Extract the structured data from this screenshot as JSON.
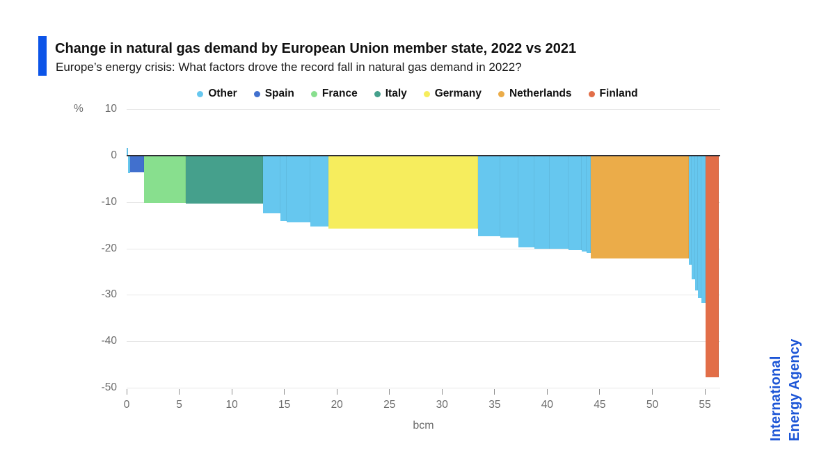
{
  "header": {
    "title": "Change in natural gas demand by European Union member state, 2022 vs 2021",
    "subtitle": "Europe’s energy crisis: What factors drove the record fall in natural gas demand in 2022?",
    "accent_color": "#0C54E8"
  },
  "branding": {
    "line1": "International",
    "line2": "Energy Agency",
    "color": "#1C55D6"
  },
  "axes": {
    "y_unit": "%",
    "x_unit": "bcm"
  },
  "chart_data": {
    "type": "bar",
    "variant": "variable-width-bars (width = volume change in bcm, height = % change)",
    "title": "Change in natural gas demand by European Union member state, 2022 vs 2021",
    "xlabel": "bcm",
    "ylabel": "%",
    "xlim": [
      0,
      56.5
    ],
    "ylim": [
      -50,
      10
    ],
    "x_ticks": [
      0,
      5,
      10,
      15,
      20,
      25,
      30,
      35,
      40,
      45,
      50,
      55
    ],
    "y_ticks": [
      10,
      0,
      -10,
      -20,
      -30,
      -40,
      -50
    ],
    "grid": true,
    "legend_position": "top",
    "legend": [
      {
        "label": "Other",
        "color": "#66C7EF"
      },
      {
        "label": "Spain",
        "color": "#4170CE"
      },
      {
        "label": "France",
        "color": "#88DF8E"
      },
      {
        "label": "Italy",
        "color": "#45A08C"
      },
      {
        "label": "Germany",
        "color": "#F6ED5D"
      },
      {
        "label": "Netherlands",
        "color": "#EBAC49"
      },
      {
        "label": "Finland",
        "color": "#E26E48"
      }
    ],
    "bars": [
      {
        "country": "Other",
        "width_bcm": 0.15,
        "change_pct": 1.7
      },
      {
        "country": "Other",
        "width_bcm": 0.15,
        "change_pct": -3.8
      },
      {
        "country": "Spain",
        "width_bcm": 1.35,
        "change_pct": -3.6
      },
      {
        "country": "France",
        "width_bcm": 4.0,
        "change_pct": -10.2
      },
      {
        "country": "Italy",
        "width_bcm": 7.35,
        "change_pct": -10.4
      },
      {
        "country": "Other",
        "width_bcm": 1.6,
        "change_pct": -12.4
      },
      {
        "country": "Other",
        "width_bcm": 0.6,
        "change_pct": -14.0
      },
      {
        "country": "Other",
        "width_bcm": 2.3,
        "change_pct": -14.4
      },
      {
        "country": "Other",
        "width_bcm": 1.7,
        "change_pct": -15.3
      },
      {
        "country": "Germany",
        "width_bcm": 14.25,
        "change_pct": -15.7
      },
      {
        "country": "Other",
        "width_bcm": 2.1,
        "change_pct": -17.3
      },
      {
        "country": "Other",
        "width_bcm": 1.7,
        "change_pct": -17.7
      },
      {
        "country": "Other",
        "width_bcm": 1.5,
        "change_pct": -19.8
      },
      {
        "country": "Other",
        "width_bcm": 1.5,
        "change_pct": -20.0
      },
      {
        "country": "Other",
        "width_bcm": 1.8,
        "change_pct": -20.1
      },
      {
        "country": "Other",
        "width_bcm": 1.2,
        "change_pct": -20.3
      },
      {
        "country": "Other",
        "width_bcm": 0.5,
        "change_pct": -20.6
      },
      {
        "country": "Other",
        "width_bcm": 0.4,
        "change_pct": -21.0
      },
      {
        "country": "Netherlands",
        "width_bcm": 9.3,
        "change_pct": -22.2
      },
      {
        "country": "Other",
        "width_bcm": 0.3,
        "change_pct": -23.5
      },
      {
        "country": "Other",
        "width_bcm": 0.3,
        "change_pct": -26.7
      },
      {
        "country": "Other",
        "width_bcm": 0.3,
        "change_pct": -29.0
      },
      {
        "country": "Other",
        "width_bcm": 0.3,
        "change_pct": -30.7
      },
      {
        "country": "Other",
        "width_bcm": 0.4,
        "change_pct": -31.8
      },
      {
        "country": "Finland",
        "width_bcm": 1.3,
        "change_pct": -47.8
      }
    ]
  }
}
